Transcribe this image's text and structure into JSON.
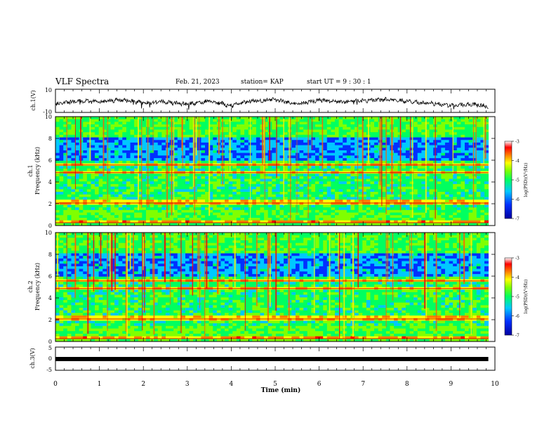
{
  "header": {
    "title": "VLF Spectra",
    "date": "Feb. 21, 2023",
    "station": "station= KAP",
    "start": "start  UT =   9 : 30 : 1"
  },
  "chart_data": [
    {
      "type": "line",
      "panel": "ch1-waveform",
      "ylabel": "ch.1(V)",
      "ylim": [
        -10,
        10
      ],
      "yticks": [
        "10",
        "-10"
      ],
      "xlim": [
        0,
        10
      ],
      "data_extent_min": 9.85,
      "series": [
        {
          "x": [
            0,
            0.5,
            1,
            1.5,
            2,
            2.5,
            3,
            3.5,
            4,
            4.5,
            5,
            5.5,
            6,
            6.5,
            7,
            7.5,
            8,
            8.5,
            9,
            9.5,
            9.85
          ],
          "values": [
            -3,
            0,
            -1,
            1,
            -2,
            -1,
            -3,
            0,
            -4,
            0,
            1,
            -3,
            1,
            -1,
            0,
            1,
            0,
            -2,
            -4,
            -3,
            -5
          ]
        }
      ]
    },
    {
      "type": "heatmap",
      "panel": "ch1-spectrogram",
      "channel_label": "ch.1",
      "ylabel": "Frequency (kHz)",
      "ylim": [
        0,
        10
      ],
      "yticks": [
        "0",
        "2",
        "4",
        "6",
        "8",
        "10"
      ],
      "xlim": [
        0,
        10
      ],
      "colorbar": {
        "label": "log(PSD)(V²/Hz)",
        "min": -7,
        "max": -3,
        "ticks": [
          "-3",
          "-4",
          "-5",
          "-6",
          "-7"
        ]
      }
    },
    {
      "type": "heatmap",
      "panel": "ch2-spectrogram",
      "channel_label": "ch.2",
      "ylabel": "Frequency (kHz)",
      "ylim": [
        0,
        10
      ],
      "yticks": [
        "0",
        "2",
        "4",
        "6",
        "8",
        "10"
      ],
      "xlim": [
        0,
        10
      ],
      "colorbar": {
        "label": "log(PSD)(V²/Hz)",
        "min": -7,
        "max": -3,
        "ticks": [
          "-3",
          "-4",
          "-5",
          "-6",
          "-7"
        ]
      }
    },
    {
      "type": "line",
      "panel": "ch3-waveform",
      "ylabel": "ch.3(V)",
      "ylim": [
        -5,
        5
      ],
      "yticks": [
        "5",
        "0",
        "-5"
      ],
      "xlim": [
        0,
        10
      ],
      "series": [
        {
          "x": [
            0,
            9.85
          ],
          "values": [
            0,
            0
          ]
        }
      ]
    }
  ],
  "xaxis": {
    "label": "Time  (min)",
    "ticks": [
      "0",
      "1",
      "2",
      "3",
      "4",
      "5",
      "6",
      "7",
      "8",
      "9",
      "10"
    ]
  },
  "colors": {
    "waveform": "#000000",
    "colormap": [
      "#0000a0",
      "#0030ff",
      "#00c8ff",
      "#00ff60",
      "#80ff00",
      "#ffff00",
      "#ff8000",
      "#ff0000",
      "#ffffff"
    ]
  }
}
